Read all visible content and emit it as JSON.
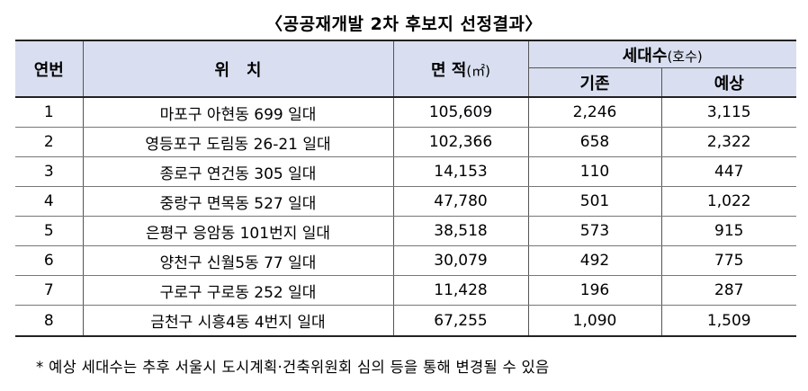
{
  "title": "〈공공재개발 2차 후보지 선정결과〉",
  "header": {
    "no": "연번",
    "location": "위   치",
    "area": "면 적",
    "area_unit": "(㎡)",
    "households": "세대수",
    "households_unit": "(호수)",
    "existing": "기존",
    "planned": "예상"
  },
  "rows": [
    {
      "no": "1",
      "location": "마포구 아현동 699 일대",
      "area": "105,609",
      "existing": "2,246",
      "planned": "3,115"
    },
    {
      "no": "2",
      "location": "영등포구 도림동 26-21 일대",
      "area": "102,366",
      "existing": "658",
      "planned": "2,322"
    },
    {
      "no": "3",
      "location": "종로구 연건동 305 일대",
      "area": "14,153",
      "existing": "110",
      "planned": "447"
    },
    {
      "no": "4",
      "location": "중랑구 면목동 527 일대",
      "area": "47,780",
      "existing": "501",
      "planned": "1,022"
    },
    {
      "no": "5",
      "location": "은평구 응암동 101번지 일대",
      "area": "38,518",
      "existing": "573",
      "planned": "915"
    },
    {
      "no": "6",
      "location": "양천구 신월5동 77 일대",
      "area": "30,079",
      "existing": "492",
      "planned": "775"
    },
    {
      "no": "7",
      "location": "구로구 구로동 252 일대",
      "area": "11,428",
      "existing": "196",
      "planned": "287"
    },
    {
      "no": "8",
      "location": "금천구 시흥4동 4번지 일대",
      "area": "67,255",
      "existing": "1,090",
      "planned": "1,509"
    }
  ],
  "note": "* 예상 세대수는 추후 서울시 도시계획·건축위원회 심의 등을 통해 변경될 수 있음"
}
